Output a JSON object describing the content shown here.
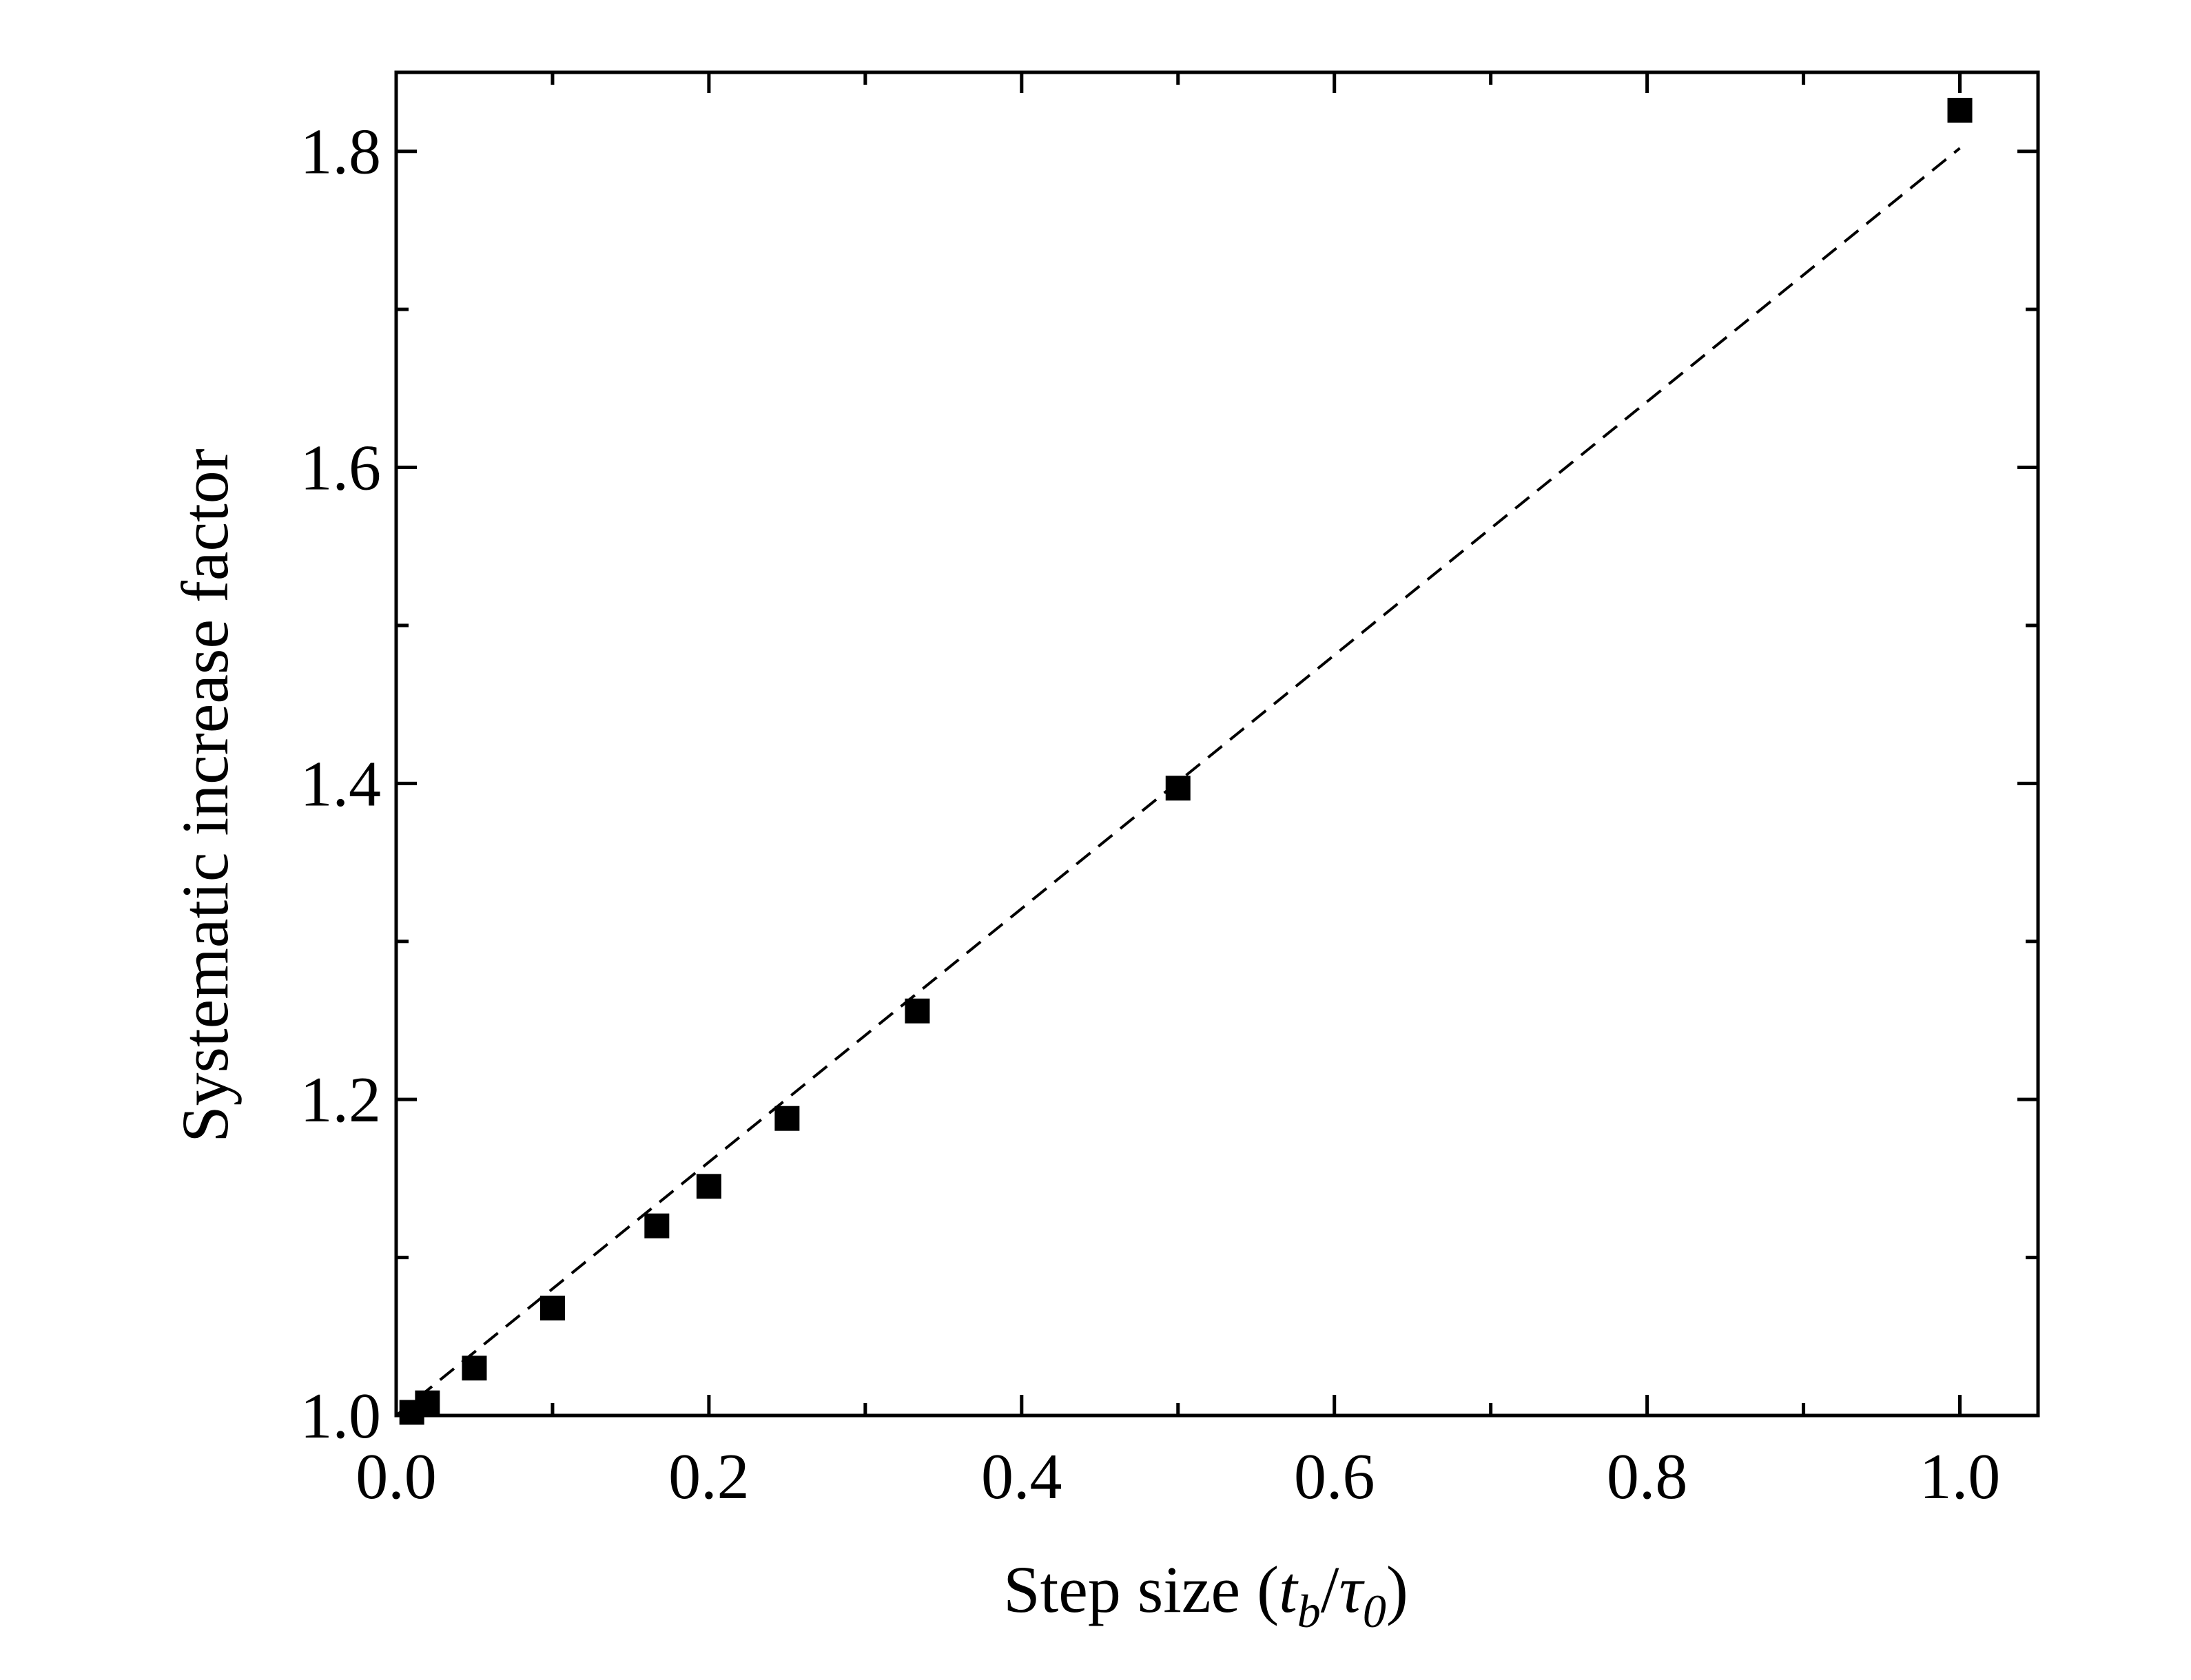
{
  "chart_data": {
    "type": "scatter",
    "title": "",
    "xlabel": {
      "prefix": "Step size (",
      "num_main": "t",
      "num_sub": "b",
      "slash": "/",
      "den_main": "τ",
      "den_sub": "0",
      "suffix": ")"
    },
    "ylabel": "Systematic increase factor",
    "xlim": [
      0.0,
      1.05
    ],
    "ylim": [
      1.0,
      1.85
    ],
    "x_ticks": [
      0.0,
      0.2,
      0.4,
      0.6,
      0.8,
      1.0
    ],
    "x_tick_labels": [
      "0.0",
      "0.2",
      "0.4",
      "0.6",
      "0.8",
      "1.0"
    ],
    "y_ticks": [
      1.0,
      1.2,
      1.4,
      1.6,
      1.8
    ],
    "y_tick_labels": [
      "1.0",
      "1.2",
      "1.4",
      "1.6",
      "1.8"
    ],
    "grid": false,
    "series": [
      {
        "marker": "square",
        "color": "#000000",
        "x": [
          0.01,
          0.02,
          0.05,
          0.1,
          0.1667,
          0.2,
          0.25,
          0.3333,
          0.5,
          1.0
        ],
        "y": [
          1.002,
          1.008,
          1.03,
          1.068,
          1.12,
          1.145,
          1.188,
          1.256,
          1.397,
          1.826
        ]
      }
    ],
    "fit_line": {
      "style": "dashed",
      "color": "#000000",
      "x": [
        0.0,
        1.0
      ],
      "y": [
        1.0,
        1.802
      ]
    }
  }
}
